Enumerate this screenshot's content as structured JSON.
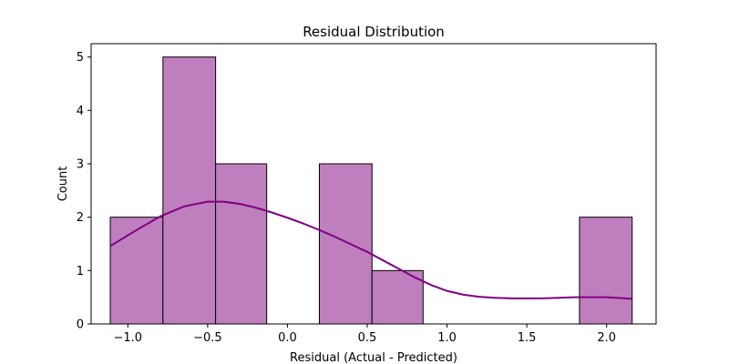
{
  "chart_data": {
    "type": "bar",
    "title": "Residual Distribution",
    "xlabel": "Residual (Actual - Predicted)",
    "ylabel": "Count",
    "xlim": [
      -1.23,
      2.31
    ],
    "ylim": [
      0,
      5.25
    ],
    "bins": [
      {
        "x0": -1.11,
        "x1": -0.78,
        "count": 2
      },
      {
        "x0": -0.78,
        "x1": -0.45,
        "count": 5
      },
      {
        "x0": -0.45,
        "x1": -0.13,
        "count": 3
      },
      {
        "x0": -0.13,
        "x1": 0.2,
        "count": 0
      },
      {
        "x0": 0.2,
        "x1": 0.53,
        "count": 3
      },
      {
        "x0": 0.53,
        "x1": 0.85,
        "count": 1
      },
      {
        "x0": 0.85,
        "x1": 1.18,
        "count": 0
      },
      {
        "x0": 1.18,
        "x1": 1.51,
        "count": 0
      },
      {
        "x0": 1.51,
        "x1": 1.83,
        "count": 0
      },
      {
        "x0": 1.83,
        "x1": 2.16,
        "count": 2
      }
    ],
    "kde": {
      "x": [
        -1.11,
        -0.95,
        -0.8,
        -0.65,
        -0.5,
        -0.4,
        -0.3,
        -0.2,
        -0.1,
        0.0,
        0.1,
        0.2,
        0.3,
        0.4,
        0.5,
        0.6,
        0.7,
        0.8,
        0.9,
        1.0,
        1.1,
        1.2,
        1.3,
        1.4,
        1.5,
        1.6,
        1.7,
        1.8,
        1.9,
        2.0,
        2.16
      ],
      "y": [
        1.46,
        1.75,
        2.01,
        2.2,
        2.29,
        2.29,
        2.25,
        2.18,
        2.09,
        1.99,
        1.88,
        1.76,
        1.63,
        1.49,
        1.35,
        1.19,
        1.03,
        0.87,
        0.73,
        0.62,
        0.55,
        0.51,
        0.49,
        0.48,
        0.48,
        0.48,
        0.49,
        0.5,
        0.5,
        0.5,
        0.47
      ]
    },
    "xticks": [
      -1.0,
      -0.5,
      0.0,
      0.5,
      1.0,
      1.5,
      2.0
    ],
    "xtick_labels": [
      "−1.0",
      "−0.5",
      "0.0",
      "0.5",
      "1.0",
      "1.5",
      "2.0"
    ],
    "yticks": [
      0,
      1,
      2,
      3,
      4,
      5
    ],
    "ytick_labels": [
      "0",
      "1",
      "2",
      "3",
      "4",
      "5"
    ],
    "grid": false,
    "colors": {
      "bar_fill": "#bf7fbf",
      "bar_edge": "#000000",
      "kde_line": "#800080",
      "axis": "#000000"
    }
  }
}
